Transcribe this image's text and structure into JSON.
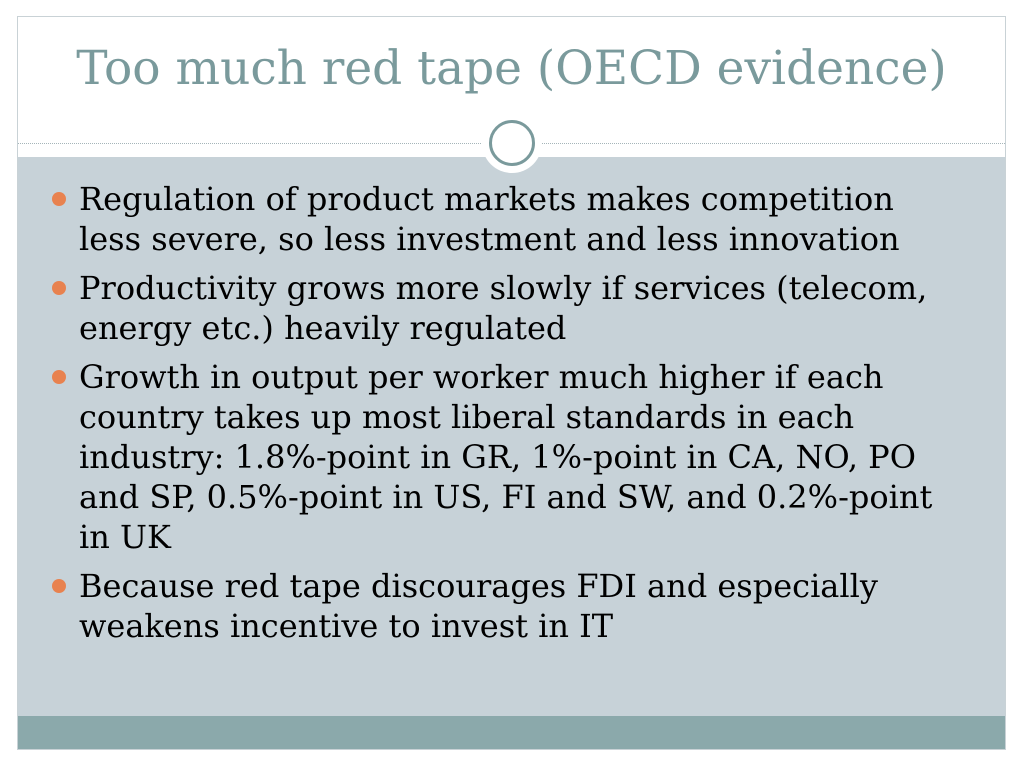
{
  "slide": {
    "title": "Too much red tape (OECD evidence)",
    "bullets": [
      "Regulation of product markets makes competition less severe, so less investment and less innovation",
      "Productivity grows more slowly if services (telecom, energy etc.) heavily regulated",
      "Growth in output per worker much higher if each country takes up most liberal standards in each industry: 1.8%-point in GR, 1%-point in CA, NO, PO and SP, 0.5%-point in US, FI and SW, and 0.2%-point in UK",
      "Because red tape discourages FDI and especially weakens incentive to invest in IT"
    ]
  },
  "colors": {
    "title": "#7a9a9c",
    "content_background": "#c7d2d8",
    "footer_band": "#8ba9ab",
    "bullet": "#e8824f"
  },
  "icons": {
    "divider_ornament": "ring-ornament-icon",
    "bullet_marker": "bullet-dot-icon"
  }
}
